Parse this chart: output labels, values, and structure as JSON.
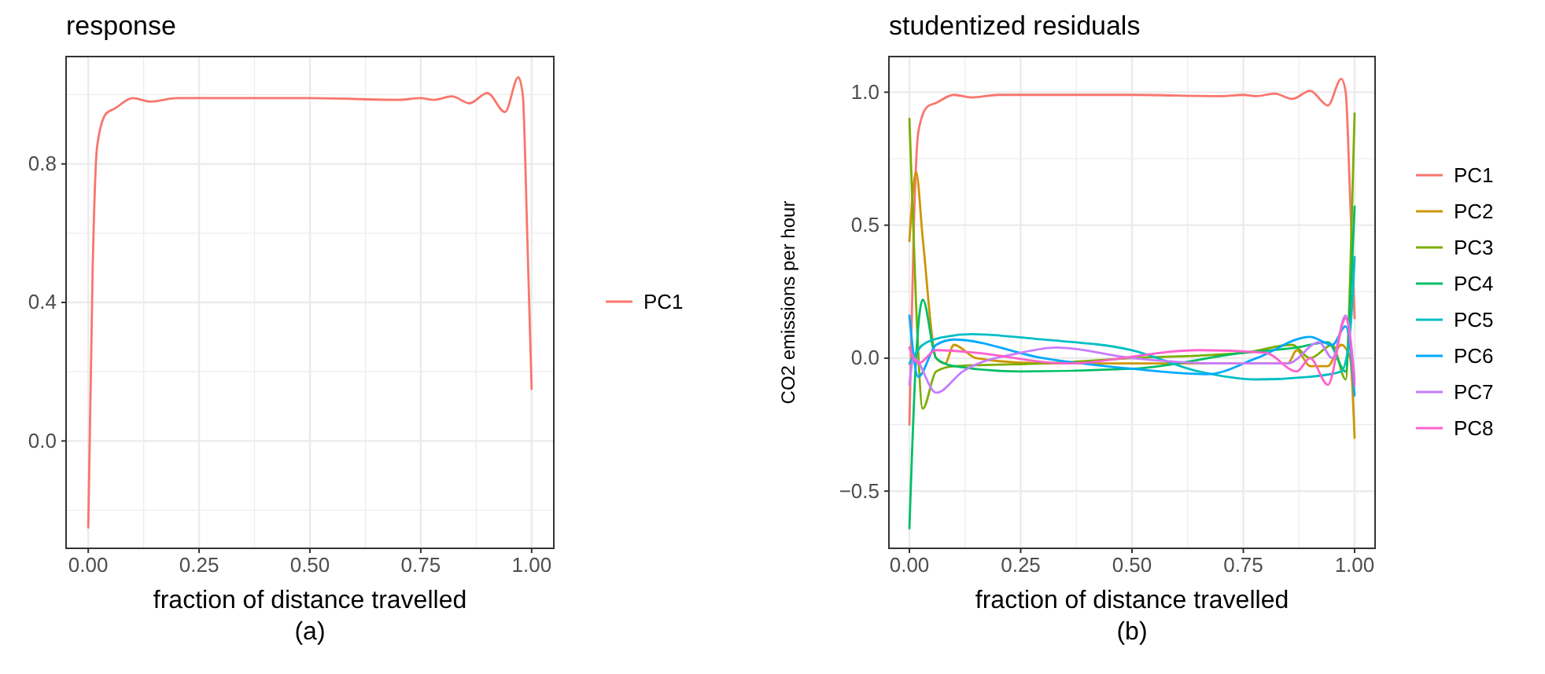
{
  "chart_data": [
    {
      "type": "line",
      "title": "response",
      "xlabel": "fraction of distance travelled",
      "annotations": [
        "(a)"
      ],
      "xlim": [
        -0.05,
        1.05
      ],
      "xticks": [
        {
          "value": 0,
          "label": "0.00"
        },
        {
          "value": 0.25,
          "label": "0.25"
        },
        {
          "value": 0.5,
          "label": "0.50"
        },
        {
          "value": 0.75,
          "label": "0.75"
        },
        {
          "value": 1,
          "label": "1.00"
        }
      ],
      "ylim": [
        -0.31,
        1.11
      ],
      "yticks": [
        {
          "value": 0,
          "label": "0.0"
        },
        {
          "value": 0.4,
          "label": "0.4"
        },
        {
          "value": 0.8,
          "label": "0.8"
        }
      ],
      "grid": true,
      "legend": "right",
      "series": [
        {
          "name": "PC1",
          "color": "#f8766d",
          "x": [
            0,
            0.01,
            0.02,
            0.04,
            0.06,
            0.1,
            0.14,
            0.2,
            0.3,
            0.5,
            0.7,
            0.75,
            0.78,
            0.82,
            0.86,
            0.9,
            0.94,
            0.97,
            0.98,
            0.99,
            1.0
          ],
          "values": [
            -0.25,
            0.5,
            0.85,
            0.945,
            0.96,
            0.99,
            0.98,
            0.99,
            0.99,
            0.99,
            0.985,
            0.99,
            0.985,
            0.995,
            0.975,
            1.005,
            0.95,
            1.05,
            1.0,
            0.6,
            0.15
          ]
        }
      ]
    },
    {
      "type": "line",
      "title": "studentized residuals",
      "xlabel": "fraction of distance travelled",
      "ylabel": "CO2 emissions per hour",
      "annotations": [
        "(b)"
      ],
      "xlim": [
        -0.046,
        1.046
      ],
      "xticks": [
        {
          "value": 0,
          "label": "0.00"
        },
        {
          "value": 0.25,
          "label": "0.25"
        },
        {
          "value": 0.5,
          "label": "0.50"
        },
        {
          "value": 0.75,
          "label": "0.75"
        },
        {
          "value": 1,
          "label": "1.00"
        }
      ],
      "ylim": [
        -0.715,
        1.134
      ],
      "yticks": [
        {
          "value": -0.5,
          "label": "−0.5"
        },
        {
          "value": 0,
          "label": "0.0"
        },
        {
          "value": 0.5,
          "label": "0.5"
        },
        {
          "value": 1,
          "label": "1.0"
        }
      ],
      "grid": true,
      "legend": "right",
      "series": [
        {
          "name": "PC1",
          "color": "#f8766d",
          "x": [
            0,
            0.01,
            0.02,
            0.04,
            0.06,
            0.1,
            0.14,
            0.2,
            0.3,
            0.5,
            0.7,
            0.75,
            0.78,
            0.82,
            0.86,
            0.9,
            0.94,
            0.97,
            0.98,
            0.99,
            1.0
          ],
          "values": [
            -0.25,
            0.5,
            0.85,
            0.945,
            0.96,
            0.99,
            0.98,
            0.99,
            0.99,
            0.99,
            0.985,
            0.99,
            0.985,
            0.995,
            0.975,
            1.005,
            0.95,
            1.05,
            1.0,
            0.6,
            0.15
          ]
        },
        {
          "name": "PC2",
          "color": "#cd9600",
          "x": [
            0,
            0.015,
            0.03,
            0.06,
            0.08,
            0.1,
            0.15,
            0.3,
            0.5,
            0.85,
            0.87,
            0.9,
            0.94,
            0.97,
            0.99,
            1.0
          ],
          "values": [
            0.44,
            0.7,
            0.45,
            0.0,
            -0.02,
            0.05,
            0.0,
            -0.02,
            -0.02,
            -0.02,
            0.03,
            -0.03,
            -0.03,
            0.05,
            0.0,
            -0.3
          ]
        },
        {
          "name": "PC3",
          "color": "#7cae00",
          "x": [
            0,
            0.015,
            0.03,
            0.06,
            0.1,
            0.3,
            0.5,
            0.75,
            0.86,
            0.9,
            0.95,
            0.98,
            0.99,
            1.0
          ],
          "values": [
            0.9,
            0.2,
            -0.19,
            -0.05,
            -0.03,
            -0.02,
            0.0,
            0.02,
            0.05,
            0.0,
            0.05,
            -0.08,
            0.3,
            0.92
          ]
        },
        {
          "name": "PC4",
          "color": "#00be67",
          "x": [
            0,
            0.015,
            0.03,
            0.06,
            0.1,
            0.25,
            0.5,
            0.75,
            0.87,
            0.94,
            0.98,
            0.99,
            1.0
          ],
          "values": [
            -0.64,
            0.0,
            0.22,
            0.0,
            -0.03,
            -0.05,
            -0.04,
            0.02,
            0.04,
            0.06,
            -0.05,
            0.2,
            0.57
          ]
        },
        {
          "name": "PC5",
          "color": "#00bfc4",
          "x": [
            0,
            0.03,
            0.08,
            0.14,
            0.3,
            0.5,
            0.65,
            0.78,
            0.9,
            0.97,
            0.99,
            1.0
          ],
          "values": [
            -0.02,
            0.05,
            0.08,
            0.09,
            0.07,
            0.03,
            -0.05,
            -0.08,
            -0.07,
            -0.05,
            0.1,
            0.38
          ]
        },
        {
          "name": "PC6",
          "color": "#00a9ff",
          "x": [
            0,
            0.02,
            0.06,
            0.1,
            0.3,
            0.5,
            0.67,
            0.78,
            0.9,
            0.95,
            0.98,
            1.0
          ],
          "values": [
            0.16,
            -0.07,
            0.05,
            0.07,
            0.0,
            -0.04,
            -0.06,
            0.0,
            0.08,
            0.05,
            0.12,
            -0.14
          ]
        },
        {
          "name": "PC7",
          "color": "#c77cff",
          "x": [
            0,
            0.01,
            0.06,
            0.12,
            0.25,
            0.33,
            0.5,
            0.7,
            0.85,
            0.92,
            0.95,
            0.98,
            1.0
          ],
          "values": [
            -0.1,
            0.0,
            -0.13,
            -0.05,
            0.02,
            0.04,
            0.0,
            -0.02,
            -0.02,
            0.06,
            0.0,
            0.16,
            -0.08
          ]
        },
        {
          "name": "PC8",
          "color": "#ff61cc",
          "x": [
            0,
            0.02,
            0.06,
            0.15,
            0.35,
            0.65,
            0.8,
            0.87,
            0.9,
            0.94,
            0.98,
            1.0
          ],
          "values": [
            0.04,
            -0.02,
            0.03,
            0.02,
            -0.02,
            0.03,
            0.02,
            -0.05,
            0.0,
            -0.1,
            0.15,
            -0.1
          ]
        }
      ]
    }
  ]
}
